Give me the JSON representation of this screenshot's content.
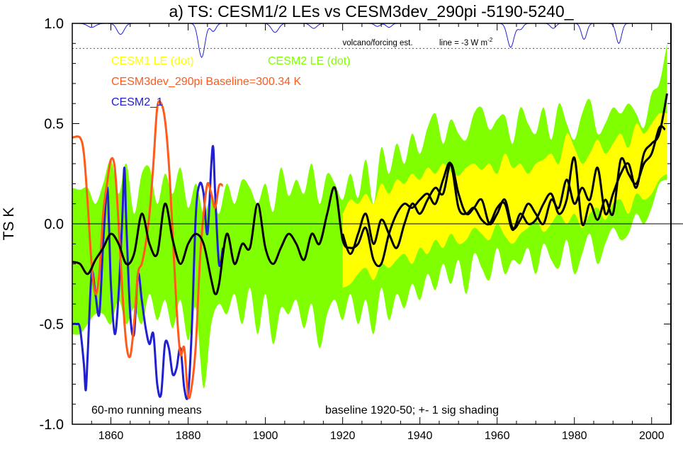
{
  "chart_data": {
    "type": "line",
    "title": "a) TS: CESM1/2 LEs vs CESM3dev_290pi -5190-5240_",
    "ylabel": "TS K",
    "xlim": [
      1850,
      2005
    ],
    "ylim": [
      -1.0,
      1.0
    ],
    "x_ticks": [
      1860,
      1880,
      1900,
      1920,
      1940,
      1960,
      1980,
      2000
    ],
    "y_ticks": [
      {
        "value": 1.0,
        "label": "1.0"
      },
      {
        "value": 0.5,
        "label": "0.5"
      },
      {
        "value": 0.0,
        "label": "0.0"
      },
      {
        "value": -0.5,
        "label": "-0.5"
      },
      {
        "value": -1.0,
        "label": "-1.0"
      }
    ],
    "legend": [
      {
        "label": "CESM1 LE (dot)",
        "color": "#ffff00"
      },
      {
        "label": "CESM2 LE (dot)",
        "color": "#80ff00"
      },
      {
        "label": "CESM3dev_290pi Baseline=300.34 K",
        "color": "#ff5a1a"
      },
      {
        "label": "CESM2_1",
        "color": "#2020d0"
      }
    ],
    "annotations": {
      "volcano": "volcano/forcing est.",
      "forcing_line": "line = -3 W m",
      "forcing_line_sup": "-2",
      "running_means": "60-mo running means",
      "baseline": "baseline 1920-50; +- 1 sig shading"
    },
    "forcing_ref_value": 0.875,
    "volcano_dips": [
      {
        "year": 1855,
        "depth": 0.02,
        "width": 1.5
      },
      {
        "year": 1862.5,
        "depth": 0.055,
        "width": 1.3
      },
      {
        "year": 1883.5,
        "depth": 0.17,
        "width": 1.2
      },
      {
        "year": 1886.5,
        "depth": 0.04,
        "width": 1.0
      },
      {
        "year": 1902.5,
        "depth": 0.045,
        "width": 1.3
      },
      {
        "year": 1912.5,
        "depth": 0.025,
        "width": 1.2
      },
      {
        "year": 1929,
        "depth": 0.015,
        "width": 1.0
      },
      {
        "year": 1932,
        "depth": 0.02,
        "width": 1.0
      },
      {
        "year": 1963.5,
        "depth": 0.12,
        "width": 1.2
      },
      {
        "year": 1966,
        "depth": 0.03,
        "width": 1.0
      },
      {
        "year": 1974.5,
        "depth": 0.025,
        "width": 1.0
      },
      {
        "year": 1982.5,
        "depth": 0.08,
        "width": 1.0
      },
      {
        "year": 1991.5,
        "depth": 0.1,
        "width": 1.0
      }
    ],
    "series": [
      {
        "name": "CESM2 LE (dot)",
        "kind": "band",
        "color": "#80ff00",
        "x": [
          1850,
          1852,
          1854,
          1856,
          1858,
          1860,
          1862,
          1864,
          1866,
          1868,
          1870,
          1872,
          1874,
          1876,
          1878,
          1880,
          1882,
          1884,
          1886,
          1888,
          1890,
          1892,
          1894,
          1896,
          1898,
          1900,
          1902,
          1904,
          1906,
          1908,
          1910,
          1912,
          1914,
          1916,
          1918,
          1920,
          1922,
          1924,
          1926,
          1928,
          1930,
          1932,
          1934,
          1936,
          1938,
          1940,
          1942,
          1944,
          1946,
          1948,
          1950,
          1952,
          1954,
          1956,
          1958,
          1960,
          1962,
          1964,
          1966,
          1968,
          1970,
          1972,
          1974,
          1976,
          1978,
          1980,
          1982,
          1984,
          1986,
          1988,
          1990,
          1992,
          1994,
          1996,
          1998,
          2000,
          2002,
          2004
        ],
        "upper": [
          0.18,
          0.17,
          0.18,
          0.1,
          0.2,
          0.32,
          0.15,
          0.3,
          0.05,
          0.25,
          0.28,
          0.1,
          0.25,
          0.15,
          0.28,
          0.08,
          0.2,
          0.05,
          0.14,
          0.05,
          0.2,
          0.1,
          0.22,
          0.18,
          0.1,
          0.2,
          0.06,
          0.28,
          0.14,
          0.22,
          0.15,
          0.3,
          0.1,
          0.25,
          0.2,
          0.12,
          0.25,
          0.13,
          0.32,
          0.1,
          0.38,
          0.25,
          0.4,
          0.3,
          0.45,
          0.35,
          0.48,
          0.55,
          0.4,
          0.52,
          0.45,
          0.42,
          0.55,
          0.58,
          0.47,
          0.52,
          0.54,
          0.4,
          0.58,
          0.5,
          0.45,
          0.58,
          0.42,
          0.6,
          0.5,
          0.42,
          0.55,
          0.62,
          0.45,
          0.5,
          0.58,
          0.55,
          0.6,
          0.55,
          0.48,
          0.65,
          0.7,
          0.9
        ],
        "lower": [
          -0.55,
          -0.55,
          -0.5,
          -0.45,
          -0.45,
          -0.5,
          -0.38,
          -0.5,
          -0.42,
          -0.5,
          -0.35,
          -0.48,
          -0.38,
          -0.52,
          -0.38,
          -0.58,
          -0.42,
          -0.82,
          -0.5,
          -0.4,
          -0.45,
          -0.35,
          -0.5,
          -0.32,
          -0.55,
          -0.35,
          -0.6,
          -0.42,
          -0.45,
          -0.38,
          -0.52,
          -0.4,
          -0.62,
          -0.45,
          -0.38,
          -0.48,
          -0.35,
          -0.5,
          -0.38,
          -0.55,
          -0.32,
          -0.48,
          -0.35,
          -0.42,
          -0.3,
          -0.38,
          -0.25,
          -0.33,
          -0.2,
          -0.3,
          -0.18,
          -0.35,
          -0.15,
          -0.22,
          -0.28,
          -0.12,
          -0.25,
          -0.18,
          -0.2,
          -0.12,
          -0.25,
          -0.1,
          -0.18,
          -0.22,
          -0.08,
          -0.25,
          -0.15,
          -0.05,
          -0.2,
          -0.1,
          -0.02,
          -0.08,
          -0.05,
          0.05,
          0.0,
          0.08,
          0.2,
          0.22
        ]
      },
      {
        "name": "CESM1 LE (dot)",
        "kind": "band",
        "color": "#ffff00",
        "x": [
          1920,
          1922,
          1924,
          1926,
          1928,
          1930,
          1932,
          1934,
          1936,
          1938,
          1940,
          1942,
          1944,
          1946,
          1948,
          1950,
          1952,
          1954,
          1956,
          1958,
          1960,
          1962,
          1964,
          1966,
          1968,
          1970,
          1972,
          1974,
          1976,
          1978,
          1980,
          1982,
          1984,
          1986,
          1988,
          1990,
          1992,
          1994,
          1996,
          1998,
          2000,
          2002,
          2004
        ],
        "upper": [
          0.05,
          0.12,
          0.1,
          0.15,
          0.1,
          0.2,
          0.15,
          0.22,
          0.2,
          0.25,
          0.22,
          0.28,
          0.25,
          0.3,
          0.26,
          0.24,
          0.28,
          0.3,
          0.27,
          0.3,
          0.25,
          0.35,
          0.28,
          0.3,
          0.25,
          0.3,
          0.32,
          0.35,
          0.3,
          0.45,
          0.38,
          0.3,
          0.35,
          0.42,
          0.35,
          0.4,
          0.45,
          0.38,
          0.5,
          0.45,
          0.5,
          0.55,
          0.55
        ],
        "lower": [
          -0.32,
          -0.3,
          -0.25,
          -0.22,
          -0.28,
          -0.2,
          -0.22,
          -0.18,
          -0.15,
          -0.2,
          -0.12,
          -0.15,
          -0.08,
          -0.12,
          -0.05,
          -0.1,
          -0.08,
          -0.02,
          -0.05,
          -0.08,
          0.0,
          -0.06,
          -0.1,
          -0.05,
          -0.02,
          0.02,
          -0.04,
          0.0,
          0.05,
          0.0,
          0.05,
          -0.02,
          0.05,
          0.08,
          0.02,
          0.1,
          0.12,
          0.05,
          0.15,
          0.12,
          0.15,
          0.22,
          0.25
        ]
      },
      {
        "name": "CESM2_1",
        "kind": "line",
        "color": "#2020d0",
        "x": [
          1850,
          1851,
          1852,
          1853,
          1853.5,
          1854,
          1855,
          1856,
          1857,
          1858,
          1859,
          1859.5,
          1860,
          1861,
          1862,
          1863,
          1863.5,
          1864,
          1865,
          1866,
          1867,
          1868,
          1869,
          1870,
          1871,
          1872,
          1873,
          1874,
          1875,
          1876,
          1877,
          1878,
          1879,
          1880,
          1881,
          1882,
          1883,
          1884,
          1885,
          1886,
          1886.5,
          1887,
          1888,
          1889
        ],
        "y": [
          -0.5,
          -0.5,
          -0.52,
          -0.7,
          -0.83,
          -0.65,
          -0.25,
          -0.35,
          -0.45,
          -0.1,
          0.18,
          0.0,
          -0.3,
          -0.55,
          -0.35,
          0.05,
          0.28,
          0.0,
          -0.45,
          -0.55,
          -0.25,
          -0.38,
          -0.52,
          -0.6,
          -0.55,
          -0.8,
          -0.85,
          -0.6,
          -0.62,
          -0.75,
          -0.72,
          -0.62,
          -0.82,
          -0.85,
          -0.5,
          0.05,
          0.2,
          0.15,
          -0.05,
          0.3,
          0.38,
          0.15,
          -0.2,
          -0.12
        ]
      },
      {
        "name": "CESM3dev_290pi Baseline=300.34 K",
        "kind": "line",
        "color": "#ff5a1a",
        "x": [
          1850,
          1852,
          1853,
          1854,
          1855,
          1856,
          1857,
          1858,
          1859,
          1860,
          1861,
          1862,
          1863,
          1864,
          1865,
          1866,
          1867,
          1868,
          1869,
          1870,
          1871,
          1872,
          1873,
          1874,
          1875,
          1876,
          1877,
          1878,
          1879,
          1880,
          1881,
          1882,
          1883,
          1884,
          1885,
          1886,
          1887,
          1888,
          1889
        ],
        "y": [
          0.43,
          0.43,
          0.35,
          0.1,
          -0.2,
          -0.35,
          -0.25,
          0.05,
          0.2,
          0.32,
          0.28,
          0.0,
          -0.35,
          -0.6,
          -0.66,
          -0.5,
          -0.25,
          -0.2,
          -0.1,
          0.05,
          0.3,
          0.58,
          0.6,
          0.52,
          0.3,
          -0.05,
          -0.42,
          -0.65,
          -0.62,
          -0.86,
          -0.8,
          -0.6,
          -0.2,
          0.05,
          0.2,
          0.15,
          0.08,
          0.19,
          0.19
        ]
      },
      {
        "name": "Obs A",
        "kind": "line",
        "color": "#000000",
        "x": [
          1850,
          1852,
          1854,
          1856,
          1858,
          1860,
          1862,
          1864,
          1866,
          1868,
          1870,
          1872,
          1874,
          1876,
          1878,
          1880,
          1882,
          1884,
          1886,
          1887,
          1888,
          1890,
          1892,
          1894,
          1896,
          1898,
          1900,
          1902,
          1904,
          1906,
          1908,
          1910,
          1912,
          1914,
          1916,
          1918,
          1920,
          1922,
          1924,
          1926,
          1928,
          1930,
          1932,
          1934,
          1936,
          1938,
          1940,
          1942,
          1944,
          1946,
          1948,
          1950,
          1952,
          1954,
          1956,
          1958,
          1960,
          1962,
          1964,
          1966,
          1968,
          1970,
          1972,
          1974,
          1976,
          1978,
          1980,
          1982,
          1984,
          1986,
          1988,
          1990,
          1992,
          1994,
          1996,
          1998,
          2000,
          2002,
          2003.5
        ],
        "y": [
          -0.19,
          -0.2,
          -0.25,
          -0.18,
          -0.12,
          -0.05,
          -0.1,
          -0.2,
          -0.15,
          0.05,
          -0.1,
          -0.15,
          0.1,
          -0.08,
          -0.2,
          -0.1,
          -0.05,
          -0.1,
          -0.28,
          -0.35,
          -0.3,
          -0.05,
          -0.2,
          -0.1,
          -0.12,
          0.1,
          -0.12,
          -0.2,
          -0.12,
          -0.05,
          -0.1,
          -0.18,
          -0.05,
          -0.1,
          0.05,
          0.18,
          -0.08,
          -0.12,
          -0.1,
          -0.02,
          -0.18,
          -0.2,
          -0.05,
          0.05,
          0.1,
          0.08,
          0.12,
          0.15,
          0.1,
          0.22,
          0.3,
          0.08,
          0.05,
          0.08,
          0.02,
          0.0,
          0.08,
          0.1,
          -0.03,
          0.05,
          0.0,
          0.02,
          0.1,
          0.15,
          0.05,
          0.12,
          0.33,
          0.0,
          0.1,
          0.02,
          0.12,
          0.05,
          0.32,
          0.25,
          0.2,
          0.3,
          0.35,
          0.48,
          0.47
        ]
      },
      {
        "name": "Obs B",
        "kind": "line",
        "color": "#000000",
        "x": [
          1920,
          1922,
          1924,
          1926,
          1928,
          1930,
          1932,
          1934,
          1936,
          1938,
          1940,
          1942,
          1944,
          1946,
          1948,
          1950,
          1952,
          1954,
          1956,
          1958,
          1960,
          1962,
          1964,
          1966,
          1968,
          1970,
          1972,
          1974,
          1976,
          1978,
          1980,
          1982,
          1984,
          1986,
          1988,
          1990,
          1992,
          1994,
          1996,
          1998,
          2000,
          2002,
          2004
        ],
        "y": [
          -0.05,
          -0.15,
          -0.05,
          0.05,
          -0.1,
          0.02,
          -0.05,
          -0.12,
          0.0,
          0.1,
          0.05,
          0.12,
          0.18,
          0.15,
          0.3,
          0.15,
          0.05,
          0.08,
          0.12,
          0.0,
          0.05,
          0.12,
          -0.02,
          0.02,
          0.1,
          0.05,
          0.0,
          0.12,
          0.08,
          0.22,
          0.1,
          0.18,
          0.12,
          0.28,
          0.05,
          0.15,
          0.25,
          0.3,
          0.18,
          0.35,
          0.4,
          0.45,
          0.65
        ]
      }
    ]
  }
}
